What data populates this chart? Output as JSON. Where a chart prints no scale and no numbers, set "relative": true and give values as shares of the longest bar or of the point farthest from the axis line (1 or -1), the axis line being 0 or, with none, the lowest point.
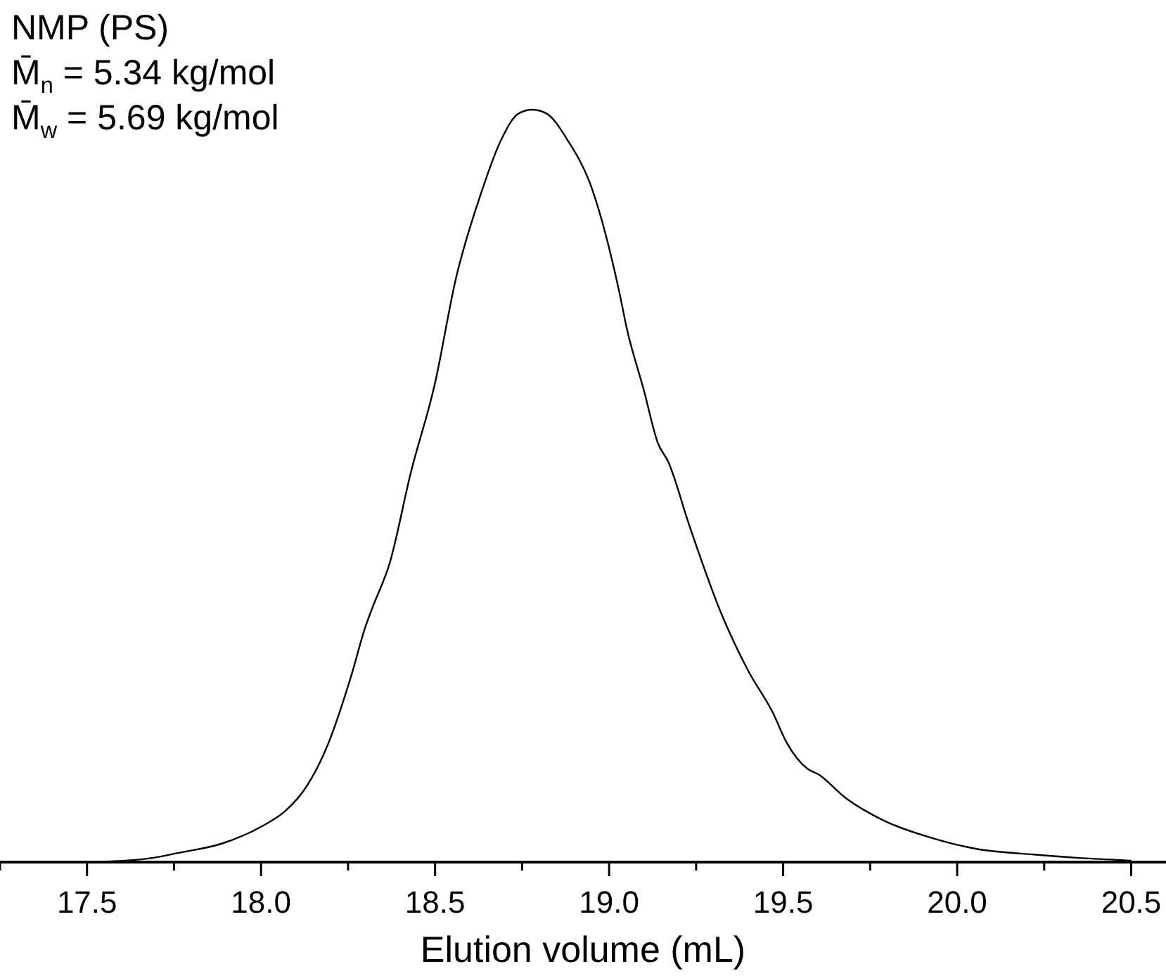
{
  "chart_data": {
    "type": "line",
    "relative": true,
    "xlabel": "Elution volume (mL)",
    "annotations": [
      "NMP (PS)",
      "M̄$_{n}$ = 5.34 kg/mol",
      "M̄$_{w}$ = 5.69 kg/mol"
    ],
    "series": [
      {
        "color": "#000000",
        "x": [
          17.5,
          17.57,
          17.68,
          17.76,
          17.89,
          18.0,
          18.07,
          18.13,
          18.19,
          18.26,
          18.3,
          18.32,
          18.37,
          18.43,
          18.5,
          18.56,
          18.63,
          18.69,
          18.74,
          18.78,
          18.82,
          18.88,
          18.95,
          19.03,
          19.05,
          19.1,
          19.14,
          19.17,
          19.23,
          19.32,
          19.4,
          19.47,
          19.51,
          19.57,
          19.6,
          19.68,
          19.79,
          19.92,
          20.05,
          20.22,
          20.37,
          20.5
        ],
        "values": [
          0,
          0.001,
          0.005,
          0.012,
          0.025,
          0.047,
          0.068,
          0.1,
          0.154,
          0.249,
          0.313,
          0.338,
          0.398,
          0.517,
          0.637,
          0.776,
          0.886,
          0.96,
          0.995,
          1.0,
          0.995,
          0.96,
          0.896,
          0.756,
          0.711,
          0.627,
          0.557,
          0.532,
          0.448,
          0.333,
          0.254,
          0.199,
          0.159,
          0.124,
          0.117,
          0.085,
          0.055,
          0.033,
          0.018,
          0.01,
          0.005,
          0.002
        ]
      }
    ],
    "xlim": [
      17.25,
      20.6
    ],
    "xticks": [
      {
        "value": 17.25,
        "label": null
      },
      17.5,
      {
        "value": 17.75,
        "label": null
      },
      {
        "value": 18.0,
        "label": "18.0"
      },
      {
        "value": 18.25,
        "label": null
      },
      18.5,
      {
        "value": 18.75,
        "label": null
      },
      {
        "value": 19.0,
        "label": "19.0"
      },
      {
        "value": 19.25,
        "label": null
      },
      19.5,
      {
        "value": 19.75,
        "label": null
      },
      {
        "value": 20.0,
        "label": "20.0"
      },
      {
        "value": 20.25,
        "label": null
      },
      20.5
    ],
    "grid": false,
    "marker": "none",
    "line_style": "solid"
  }
}
